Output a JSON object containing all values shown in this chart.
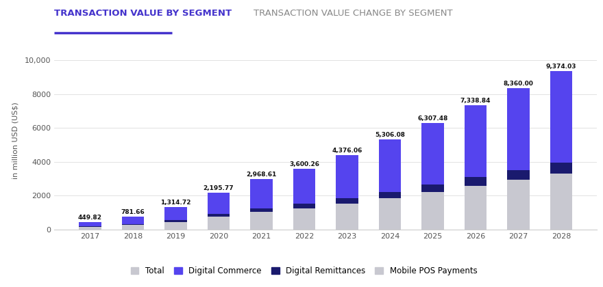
{
  "years": [
    2017,
    2018,
    2019,
    2020,
    2021,
    2022,
    2023,
    2024,
    2025,
    2026,
    2027,
    2028
  ],
  "totals": [
    449.82,
    781.66,
    1314.72,
    2195.77,
    2968.61,
    3600.26,
    4376.06,
    5306.08,
    6307.48,
    7338.84,
    8360.0,
    9374.03
  ],
  "digital_commerce": [
    260,
    450,
    760,
    1270,
    1720,
    2080,
    2530,
    3070,
    3650,
    4240,
    4840,
    5430
  ],
  "digital_remittances": [
    40,
    60,
    95,
    155,
    210,
    255,
    305,
    365,
    435,
    500,
    570,
    640
  ],
  "mobile_pos": [
    149.82,
    271.66,
    459.72,
    770.77,
    1038.61,
    1265.26,
    1541.06,
    1871.08,
    2222.48,
    2598.84,
    2950.0,
    3304.03
  ],
  "title1": "TRANSACTION VALUE BY SEGMENT",
  "title2": "TRANSACTION VALUE CHANGE BY SEGMENT",
  "ylabel": "in million USD (US$)",
  "tab1_color": "#4433CC",
  "tab2_color": "#888888",
  "bar_total_color": "#C8C8D0",
  "bar_digital_commerce_color": "#5544EE",
  "bar_digital_remittances_color": "#1a1a6e",
  "bar_mobile_pos_color": "#C8C8D0",
  "underline_color": "#4433CC",
  "background_color": "#ffffff",
  "legend_labels": [
    "Total",
    "Digital Commerce",
    "Digital Remittances",
    "Mobile POS Payments"
  ],
  "ylim": [
    0,
    10500
  ],
  "yticks": [
    0,
    2000,
    4000,
    6000,
    8000,
    10000
  ],
  "ytick_labels": [
    "0",
    "2000",
    "4000",
    "6000",
    "8000",
    "10,000"
  ]
}
